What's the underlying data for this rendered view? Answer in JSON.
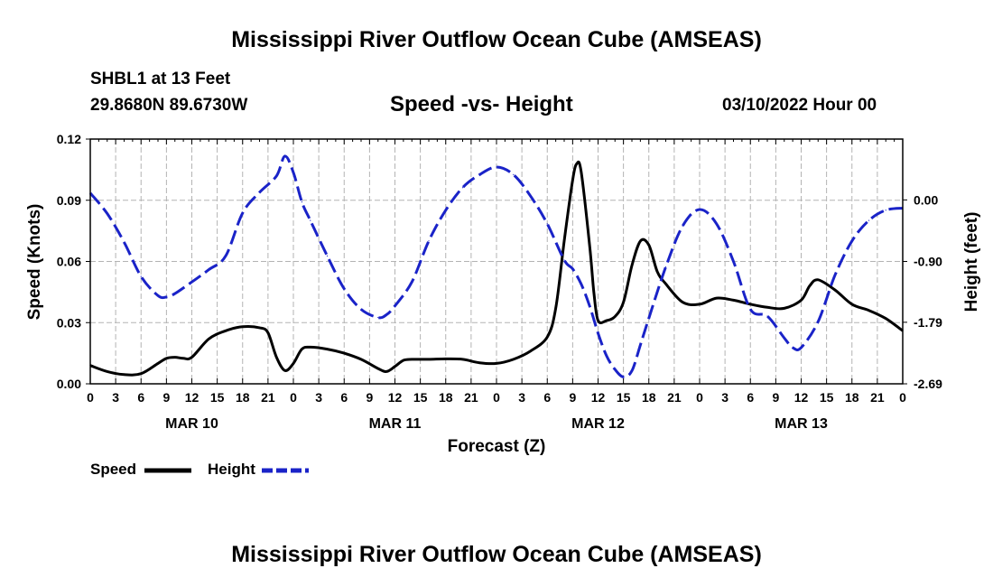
{
  "page": {
    "title": "Mississippi River Outflow Ocean Cube (AMSEAS)",
    "title_bottom": "Mississippi River Outflow Ocean Cube (AMSEAS)",
    "station": "SHBL1 at 13 Feet",
    "coords": "29.8680N  89.6730W",
    "date": "03/10/2022 Hour 00"
  },
  "chart_data": {
    "type": "line",
    "title": "Speed -vs- Height",
    "xlabel": "Forecast (Z)",
    "ylabel": "Speed (Knots)",
    "y2label": "Height (feet)",
    "x_unit": "forecast hour",
    "xlim": [
      0,
      96
    ],
    "ylim": [
      0,
      0.12
    ],
    "y2lim": [
      -2.69,
      0.89
    ],
    "y_ticks": [
      "0.00",
      "0.03",
      "0.06",
      "0.09",
      "0.12"
    ],
    "y2_ticks": [
      "-2.69",
      "-1.79",
      "-0.90",
      "0.00"
    ],
    "x_tick_labels": [
      "0",
      "3",
      "6",
      "9",
      "12",
      "15",
      "18",
      "21",
      "0",
      "3",
      "6",
      "9",
      "12",
      "15",
      "18",
      "21",
      "0",
      "3",
      "6",
      "9",
      "12",
      "15",
      "18",
      "21",
      "0",
      "3",
      "6",
      "9",
      "12",
      "15",
      "18",
      "21",
      "0"
    ],
    "date_labels": [
      {
        "hour": 12,
        "label": "MAR 10"
      },
      {
        "hour": 36,
        "label": "MAR 11"
      },
      {
        "hour": 60,
        "label": "MAR 12"
      },
      {
        "hour": 84,
        "label": "MAR 13"
      }
    ],
    "series": [
      {
        "name": "Speed",
        "axis": "left",
        "color": "#000000",
        "dash": "solid",
        "x": [
          0,
          2,
          4,
          6,
          8,
          9,
          10,
          11,
          12,
          14,
          16,
          18,
          20,
          21,
          22,
          23,
          24,
          25,
          26,
          28,
          30,
          32,
          34,
          35,
          36,
          37,
          38,
          40,
          42,
          44,
          46,
          48,
          50,
          52,
          54,
          55,
          56,
          57,
          57.5,
          58,
          59,
          59.5,
          60,
          61,
          62,
          63,
          64,
          65,
          66,
          67,
          68,
          70,
          72,
          74,
          76,
          78,
          80,
          82,
          84,
          85,
          86,
          88,
          90,
          92,
          94,
          96
        ],
        "y": [
          0.009,
          0.006,
          0.0045,
          0.005,
          0.01,
          0.0125,
          0.013,
          0.0125,
          0.013,
          0.022,
          0.026,
          0.028,
          0.0275,
          0.025,
          0.013,
          0.0065,
          0.01,
          0.017,
          0.018,
          0.017,
          0.015,
          0.012,
          0.0075,
          0.006,
          0.0085,
          0.0115,
          0.012,
          0.012,
          0.0122,
          0.012,
          0.0103,
          0.01,
          0.012,
          0.016,
          0.023,
          0.037,
          0.07,
          0.1,
          0.108,
          0.104,
          0.068,
          0.045,
          0.031,
          0.031,
          0.033,
          0.04,
          0.058,
          0.07,
          0.068,
          0.055,
          0.049,
          0.04,
          0.039,
          0.042,
          0.041,
          0.039,
          0.0375,
          0.037,
          0.041,
          0.048,
          0.051,
          0.046,
          0.039,
          0.036,
          0.032,
          0.026
        ]
      },
      {
        "name": "Height",
        "axis": "right",
        "color": "#1a23c8",
        "dash": "dashed",
        "x": [
          0,
          2,
          4,
          6,
          8,
          9,
          10,
          12,
          14,
          16,
          18,
          20,
          22,
          23,
          24,
          25,
          26,
          28,
          30,
          32,
          34,
          35,
          36,
          38,
          40,
          42,
          44,
          46,
          48,
          50,
          52,
          54,
          56,
          57,
          58,
          59,
          60,
          61,
          62,
          63,
          64,
          65,
          66,
          68,
          70,
          72,
          74,
          76,
          78,
          80,
          82,
          83,
          84,
          86,
          88,
          90,
          92,
          94,
          96
        ],
        "y": [
          0.1,
          -0.2,
          -0.62,
          -1.12,
          -1.4,
          -1.42,
          -1.37,
          -1.2,
          -1.02,
          -0.82,
          -0.19,
          0.11,
          0.35,
          0.64,
          0.4,
          -0.03,
          -0.3,
          -0.82,
          -1.3,
          -1.6,
          -1.72,
          -1.68,
          -1.55,
          -1.2,
          -0.6,
          -0.15,
          0.18,
          0.37,
          0.48,
          0.37,
          0.06,
          -0.35,
          -0.88,
          -1.01,
          -1.23,
          -1.55,
          -1.95,
          -2.28,
          -2.48,
          -2.59,
          -2.5,
          -2.12,
          -1.73,
          -0.98,
          -0.38,
          -0.14,
          -0.35,
          -0.9,
          -1.6,
          -1.7,
          -2.02,
          -2.16,
          -2.16,
          -1.78,
          -1.1,
          -0.6,
          -0.3,
          -0.15,
          -0.12
        ]
      }
    ],
    "legend": [
      {
        "label": "Speed",
        "color": "#000000",
        "dash": "solid"
      },
      {
        "label": "Height",
        "color": "#1a23c8",
        "dash": "dashed"
      }
    ]
  }
}
